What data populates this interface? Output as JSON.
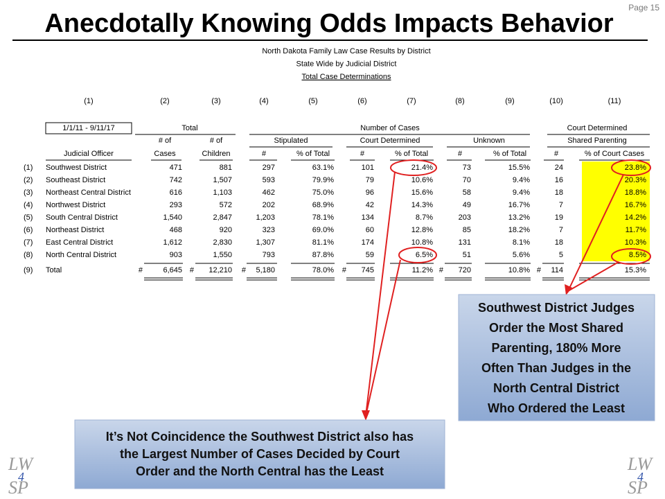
{
  "page_number": "Page 15",
  "title": "Anecdotally Knowing Odds Impacts Behavior",
  "table": {
    "captions": [
      "North Dakota Family Law Case Results by District",
      "State Wide by Judicial District",
      "Total Case Determinations"
    ],
    "column_numbers": [
      "(1)",
      "(2)",
      "(3)",
      "(4)",
      "(5)",
      "(6)",
      "(7)",
      "(8)",
      "(9)",
      "(10)",
      "(11)"
    ],
    "date_range": "1/1/11 - 9/11/17",
    "group_headers": [
      "Total",
      "Number of Cases",
      "Court Determined"
    ],
    "sub_headers": [
      "# of",
      "# of",
      "Stipulated",
      "Court Determined",
      "Unknown",
      "Shared Parenting"
    ],
    "column_headers": [
      "Judicial Officer",
      "Cases",
      "Children",
      "#",
      "% of Total",
      "#",
      "% of Total",
      "#",
      "% of Total",
      "#",
      "% of Court Cases"
    ],
    "rows": [
      [
        "(1)",
        "Southwest District",
        "471",
        "881",
        "297",
        "63.1%",
        "101",
        "21.4%",
        "73",
        "15.5%",
        "24",
        "23.8%"
      ],
      [
        "(2)",
        "Southeast District",
        "742",
        "1,507",
        "593",
        "79.9%",
        "79",
        "10.6%",
        "70",
        "9.4%",
        "16",
        "20.3%"
      ],
      [
        "(3)",
        "Northeast Central District",
        "616",
        "1,103",
        "462",
        "75.0%",
        "96",
        "15.6%",
        "58",
        "9.4%",
        "18",
        "18.8%"
      ],
      [
        "(4)",
        "Northwest District",
        "293",
        "572",
        "202",
        "68.9%",
        "42",
        "14.3%",
        "49",
        "16.7%",
        "7",
        "16.7%"
      ],
      [
        "(5)",
        "South Central District",
        "1,540",
        "2,847",
        "1,203",
        "78.1%",
        "134",
        "8.7%",
        "203",
        "13.2%",
        "19",
        "14.2%"
      ],
      [
        "(6)",
        "Northeast District",
        "468",
        "920",
        "323",
        "69.0%",
        "60",
        "12.8%",
        "85",
        "18.2%",
        "7",
        "11.7%"
      ],
      [
        "(7)",
        "East Central District",
        "1,612",
        "2,830",
        "1,307",
        "81.1%",
        "174",
        "10.8%",
        "131",
        "8.1%",
        "18",
        "10.3%"
      ],
      [
        "(8)",
        "North Central District",
        "903",
        "1,550",
        "793",
        "87.8%",
        "59",
        "6.5%",
        "51",
        "5.6%",
        "5",
        "8.5%"
      ]
    ],
    "total_row": [
      "(9)",
      "Total",
      "#",
      "6,645",
      "#",
      "12,210",
      "#",
      "5,180",
      "78.0%",
      "#",
      "745",
      "11.2%",
      "#",
      "720",
      "10.8%",
      "#",
      "114",
      "15.3%"
    ]
  },
  "callouts": [
    {
      "lines": [
        "Southwest District Judges",
        "Order the Most Shared",
        "Parenting, 180% More",
        "Often Than Judges in the",
        "North Central District",
        "Who Ordered the Least"
      ]
    },
    {
      "lines": [
        "It’s Not Coincidence the Southwest District also has",
        "the Largest Number of Cases Decided by Court",
        "Order and the North Central has the Least"
      ]
    }
  ],
  "logo": {
    "top": "LW",
    "number": "4",
    "bottom": "SP"
  }
}
